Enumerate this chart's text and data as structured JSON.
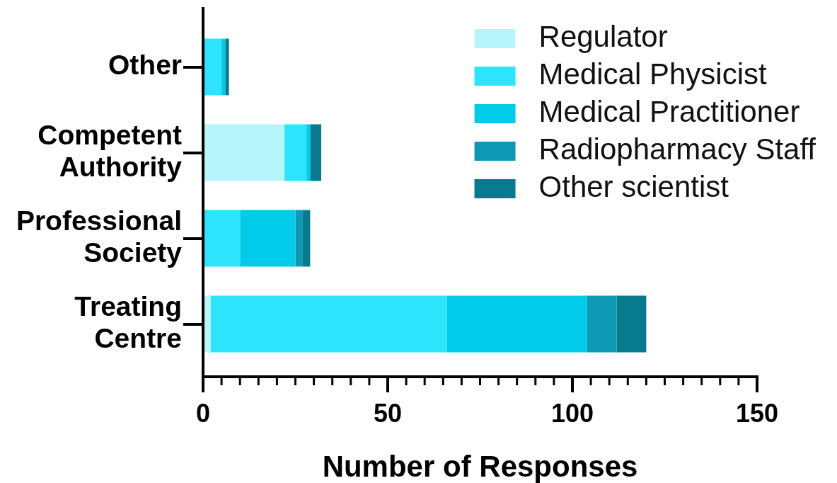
{
  "chart_data": {
    "type": "bar",
    "orientation": "horizontal",
    "stacked": true,
    "xlabel": "Number of Responses",
    "legend": "top right",
    "categories": [
      "Other",
      "Competent Authority",
      "Professional Society",
      "Treating Centre"
    ],
    "series": [
      {
        "name": "Regulator",
        "color": "#b8f4fc",
        "values": [
          0,
          22,
          0,
          2
        ]
      },
      {
        "name": "Medical Physicist",
        "color": "#2ee4fd",
        "values": [
          5,
          6,
          10,
          64
        ]
      },
      {
        "name": "Medical Practitioner",
        "color": "#00cbe9",
        "values": [
          1,
          1,
          15,
          38
        ]
      },
      {
        "name": "Radiopharmacy Staff",
        "color": "#0f98b3",
        "values": [
          0,
          0,
          2,
          8
        ]
      },
      {
        "name": "Other scientist",
        "color": "#087a90",
        "values": [
          1,
          3,
          2,
          8
        ]
      }
    ],
    "xlim": [
      0,
      150
    ],
    "xticks": [
      0,
      {
        "value": 5,
        "label": null
      },
      {
        "value": 10,
        "label": null
      },
      {
        "value": 15,
        "label": null
      },
      {
        "value": 20,
        "label": null
      },
      {
        "value": 25,
        "label": null
      },
      {
        "value": 30,
        "label": null
      },
      {
        "value": 35,
        "label": null
      },
      {
        "value": 40,
        "label": null
      },
      {
        "value": 45,
        "label": null
      },
      50,
      {
        "value": 55,
        "label": null
      },
      {
        "value": 60,
        "label": null
      },
      {
        "value": 65,
        "label": null
      },
      {
        "value": 70,
        "label": null
      },
      {
        "value": 75,
        "label": null
      },
      {
        "value": 80,
        "label": null
      },
      {
        "value": 85,
        "label": null
      },
      {
        "value": 90,
        "label": null
      },
      {
        "value": 95,
        "label": null
      },
      100,
      {
        "value": 105,
        "label": null
      },
      {
        "value": 110,
        "label": null
      },
      {
        "value": 115,
        "label": null
      },
      {
        "value": 120,
        "label": null
      },
      {
        "value": 125,
        "label": null
      },
      {
        "value": 130,
        "label": null
      },
      {
        "value": 135,
        "label": null
      },
      {
        "value": 140,
        "label": null
      },
      {
        "value": 145,
        "label": null
      },
      150
    ]
  }
}
